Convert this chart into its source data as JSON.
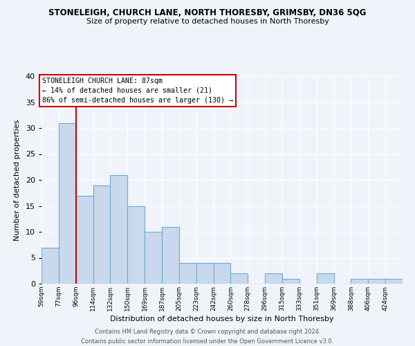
{
  "title": "STONELEIGH, CHURCH LANE, NORTH THORESBY, GRIMSBY, DN36 5QG",
  "subtitle": "Size of property relative to detached houses in North Thoresby",
  "xlabel": "Distribution of detached houses by size in North Thoresby",
  "ylabel": "Number of detached properties",
  "bar_labels": [
    "59sqm",
    "77sqm",
    "96sqm",
    "114sqm",
    "132sqm",
    "150sqm",
    "169sqm",
    "187sqm",
    "205sqm",
    "223sqm",
    "242sqm",
    "260sqm",
    "278sqm",
    "296sqm",
    "315sqm",
    "333sqm",
    "351sqm",
    "369sqm",
    "388sqm",
    "406sqm",
    "424sqm"
  ],
  "bar_values": [
    7,
    31,
    17,
    19,
    21,
    15,
    10,
    11,
    4,
    4,
    4,
    2,
    0,
    2,
    1,
    0,
    2,
    0,
    1,
    1,
    1
  ],
  "bar_color": "#c8d9ed",
  "bar_edge_color": "#6aaad4",
  "red_line_x": 2,
  "red_line_color": "#cc0000",
  "annotation_title": "STONELEIGH CHURCH LANE: 87sqm",
  "annotation_line1": "← 14% of detached houses are smaller (21)",
  "annotation_line2": "86% of semi-detached houses are larger (130) →",
  "annotation_box_color": "#ffffff",
  "annotation_box_edge": "#cc0000",
  "ylim": [
    0,
    40
  ],
  "yticks": [
    0,
    5,
    10,
    15,
    20,
    25,
    30,
    35,
    40
  ],
  "background_color": "#f0f4fa",
  "grid_color": "#ffffff",
  "footer_line1": "Contains HM Land Registry data © Crown copyright and database right 2024.",
  "footer_line2": "Contains public sector information licensed under the Open Government Licence v3.0."
}
